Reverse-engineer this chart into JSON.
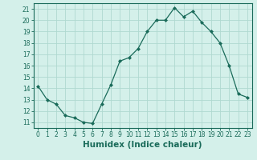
{
  "x": [
    0,
    1,
    2,
    3,
    4,
    5,
    6,
    7,
    8,
    9,
    10,
    11,
    12,
    13,
    14,
    15,
    16,
    17,
    18,
    19,
    20,
    21,
    22,
    23
  ],
  "y": [
    14.2,
    13.0,
    12.6,
    11.6,
    11.4,
    11.0,
    10.9,
    12.6,
    14.3,
    16.4,
    16.7,
    17.5,
    19.0,
    20.0,
    20.0,
    21.1,
    20.3,
    20.8,
    19.8,
    19.0,
    18.0,
    16.0,
    13.5,
    13.2
  ],
  "line_color": "#1a6b5a",
  "marker": "D",
  "marker_size": 2.0,
  "bg_color": "#d4f0ea",
  "grid_color": "#b0d9d0",
  "xlabel": "Humidex (Indice chaleur)",
  "xlim": [
    -0.5,
    23.5
  ],
  "ylim": [
    10.5,
    21.5
  ],
  "yticks": [
    11,
    12,
    13,
    14,
    15,
    16,
    17,
    18,
    19,
    20,
    21
  ],
  "xticks": [
    0,
    1,
    2,
    3,
    4,
    5,
    6,
    7,
    8,
    9,
    10,
    11,
    12,
    13,
    14,
    15,
    16,
    17,
    18,
    19,
    20,
    21,
    22,
    23
  ],
  "tick_color": "#1a6b5a",
  "tick_fontsize": 5.5,
  "xlabel_fontsize": 7.5,
  "axis_color": "#1a6b5a",
  "linewidth": 0.9
}
